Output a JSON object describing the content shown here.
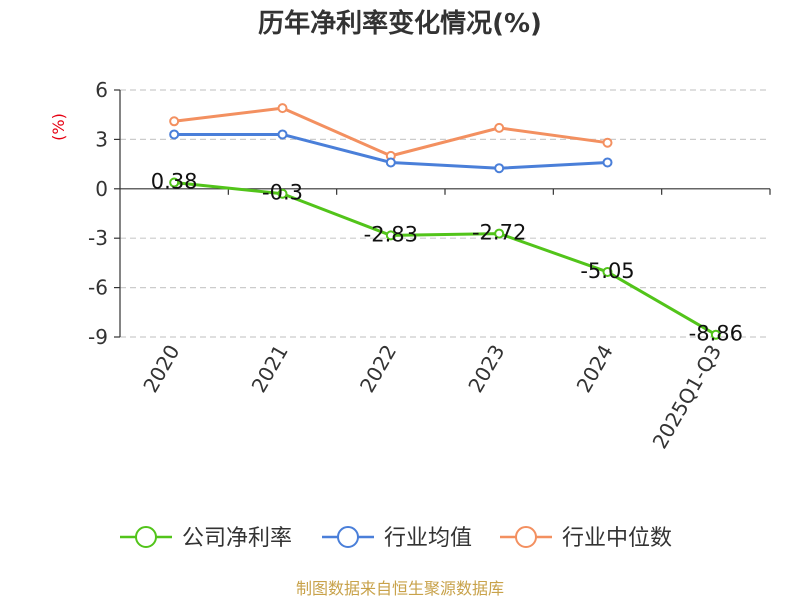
{
  "chart_data": {
    "type": "line",
    "title": "历年净利率变化情况(%)",
    "unit_label": "(%)",
    "categories": [
      "2020",
      "2021",
      "2022",
      "2023",
      "2024",
      "2025Q1-Q3"
    ],
    "ylim": [
      -9,
      6
    ],
    "yticks": [
      6,
      3,
      0,
      -3,
      -6,
      -9
    ],
    "grid": "horizontal-dashed",
    "legend_position": "bottom",
    "series": [
      {
        "name": "公司净利率",
        "color": "#52c41a",
        "values": [
          0.38,
          -0.3,
          -2.83,
          -2.72,
          -5.05,
          -8.86
        ],
        "labels": [
          "0.38",
          "-0.3",
          "-2.83",
          "-2.72",
          "-5.05",
          "-8.86"
        ]
      },
      {
        "name": "行业均值",
        "color": "#4a7fd9",
        "values": [
          3.3,
          3.3,
          1.6,
          1.25,
          1.6,
          null
        ]
      },
      {
        "name": "行业中位数",
        "color": "#f39060",
        "values": [
          4.1,
          4.9,
          2.0,
          3.7,
          2.8,
          null
        ]
      }
    ]
  },
  "footer": {
    "source": "制图数据来自恒生聚源数据库"
  }
}
